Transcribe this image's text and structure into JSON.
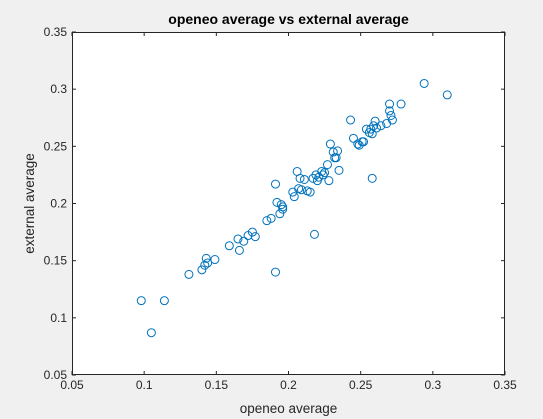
{
  "chart_data": {
    "type": "scatter",
    "title": "openeo average vs external average",
    "xlabel": "openeo average",
    "ylabel": "external average",
    "xlim": [
      0.05,
      0.35
    ],
    "ylim": [
      0.05,
      0.35
    ],
    "xticks": [
      "0.05",
      "0.1",
      "0.15",
      "0.2",
      "0.25",
      "0.3",
      "0.35"
    ],
    "yticks": [
      "0.05",
      "0.1",
      "0.15",
      "0.2",
      "0.25",
      "0.3",
      "0.35"
    ],
    "grid": false,
    "legend": "none",
    "marker": "open-circle",
    "colors": {
      "marker": "#0072bd",
      "axes_bg": "#ffffff",
      "figure_bg": "#f0f0f0",
      "axis": "#262626"
    },
    "x": [
      0.098,
      0.105,
      0.114,
      0.131,
      0.14,
      0.142,
      0.143,
      0.144,
      0.149,
      0.159,
      0.165,
      0.166,
      0.169,
      0.172,
      0.175,
      0.177,
      0.185,
      0.188,
      0.191,
      0.191,
      0.192,
      0.194,
      0.195,
      0.196,
      0.196,
      0.203,
      0.204,
      0.206,
      0.207,
      0.208,
      0.209,
      0.211,
      0.213,
      0.215,
      0.217,
      0.218,
      0.219,
      0.22,
      0.221,
      0.223,
      0.224,
      0.225,
      0.227,
      0.228,
      0.229,
      0.231,
      0.232,
      0.233,
      0.234,
      0.235,
      0.243,
      0.245,
      0.248,
      0.249,
      0.251,
      0.252,
      0.254,
      0.256,
      0.257,
      0.258,
      0.258,
      0.259,
      0.26,
      0.261,
      0.264,
      0.268,
      0.27,
      0.27,
      0.271,
      0.272,
      0.278,
      0.294,
      0.31
    ],
    "y": [
      0.115,
      0.087,
      0.115,
      0.138,
      0.142,
      0.146,
      0.152,
      0.148,
      0.151,
      0.163,
      0.169,
      0.159,
      0.167,
      0.172,
      0.175,
      0.171,
      0.185,
      0.187,
      0.217,
      0.14,
      0.201,
      0.191,
      0.199,
      0.195,
      0.197,
      0.21,
      0.206,
      0.228,
      0.213,
      0.222,
      0.212,
      0.221,
      0.211,
      0.21,
      0.222,
      0.173,
      0.225,
      0.22,
      0.223,
      0.228,
      0.225,
      0.227,
      0.234,
      0.22,
      0.252,
      0.245,
      0.24,
      0.24,
      0.246,
      0.229,
      0.273,
      0.257,
      0.252,
      0.251,
      0.254,
      0.254,
      0.265,
      0.262,
      0.265,
      0.261,
      0.222,
      0.268,
      0.272,
      0.266,
      0.268,
      0.27,
      0.287,
      0.281,
      0.277,
      0.273,
      0.287,
      0.305,
      0.295
    ]
  }
}
